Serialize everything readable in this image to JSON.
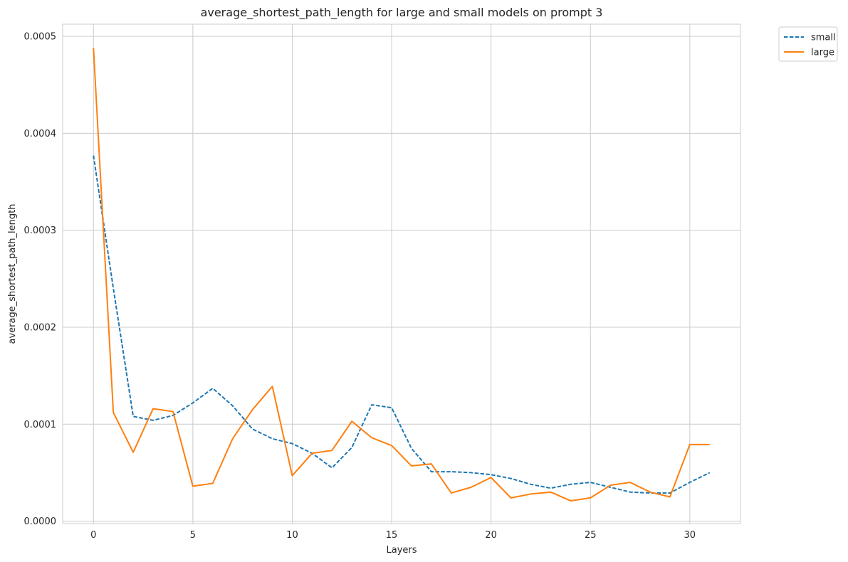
{
  "chart_data": {
    "type": "line",
    "title": "average_shortest_path_length for large and small models on prompt 3",
    "xlabel": "Layers",
    "ylabel": "average_shortest_path_length",
    "xlim": [
      -1.55,
      32.55
    ],
    "ylim": [
      -2.5e-06,
      0.0005125
    ],
    "xticks": [
      0,
      5,
      10,
      15,
      20,
      25,
      30
    ],
    "xtick_labels": [
      "0",
      "5",
      "10",
      "15",
      "20",
      "25",
      "30"
    ],
    "yticks": [
      0.0,
      0.0001,
      0.0002,
      0.0003,
      0.0004,
      0.0005
    ],
    "ytick_labels": [
      "0.0000",
      "0.0001",
      "0.0002",
      "0.0003",
      "0.0004",
      "0.0005"
    ],
    "grid": true,
    "legend_position": "upper right, outside plot",
    "x": [
      0,
      1,
      2,
      3,
      4,
      5,
      6,
      7,
      8,
      9,
      10,
      11,
      12,
      13,
      14,
      15,
      16,
      17,
      18,
      19,
      20,
      21,
      22,
      23,
      24,
      25,
      26,
      27,
      28,
      29,
      30,
      31
    ],
    "series": [
      {
        "name": "small",
        "style": "dashed",
        "color": "#1f77b4",
        "values": [
          0.000377,
          0.00024,
          0.000108,
          0.000104,
          0.000109,
          0.000122,
          0.000137,
          0.000119,
          9.5e-05,
          8.5e-05,
          8e-05,
          7e-05,
          5.5e-05,
          7.6e-05,
          0.00012,
          0.000117,
          7.5e-05,
          5.1e-05,
          5.1e-05,
          5e-05,
          4.8e-05,
          4.4e-05,
          3.8e-05,
          3.4e-05,
          3.8e-05,
          4e-05,
          3.5e-05,
          3e-05,
          2.9e-05,
          2.9e-05,
          4e-05,
          5e-05
        ]
      },
      {
        "name": "large",
        "style": "solid",
        "color": "#ff7f0e",
        "values": [
          0.000488,
          0.000112,
          7.1e-05,
          0.000116,
          0.000113,
          3.6e-05,
          3.9e-05,
          8.5e-05,
          0.000115,
          0.000139,
          4.7e-05,
          7e-05,
          7.3e-05,
          0.000103,
          8.6e-05,
          7.8e-05,
          5.7e-05,
          5.9e-05,
          2.9e-05,
          3.5e-05,
          4.5e-05,
          2.4e-05,
          2.8e-05,
          3e-05,
          2.1e-05,
          2.4e-05,
          3.7e-05,
          4e-05,
          3e-05,
          2.5e-05,
          7.9e-05,
          7.9e-05
        ]
      }
    ]
  }
}
